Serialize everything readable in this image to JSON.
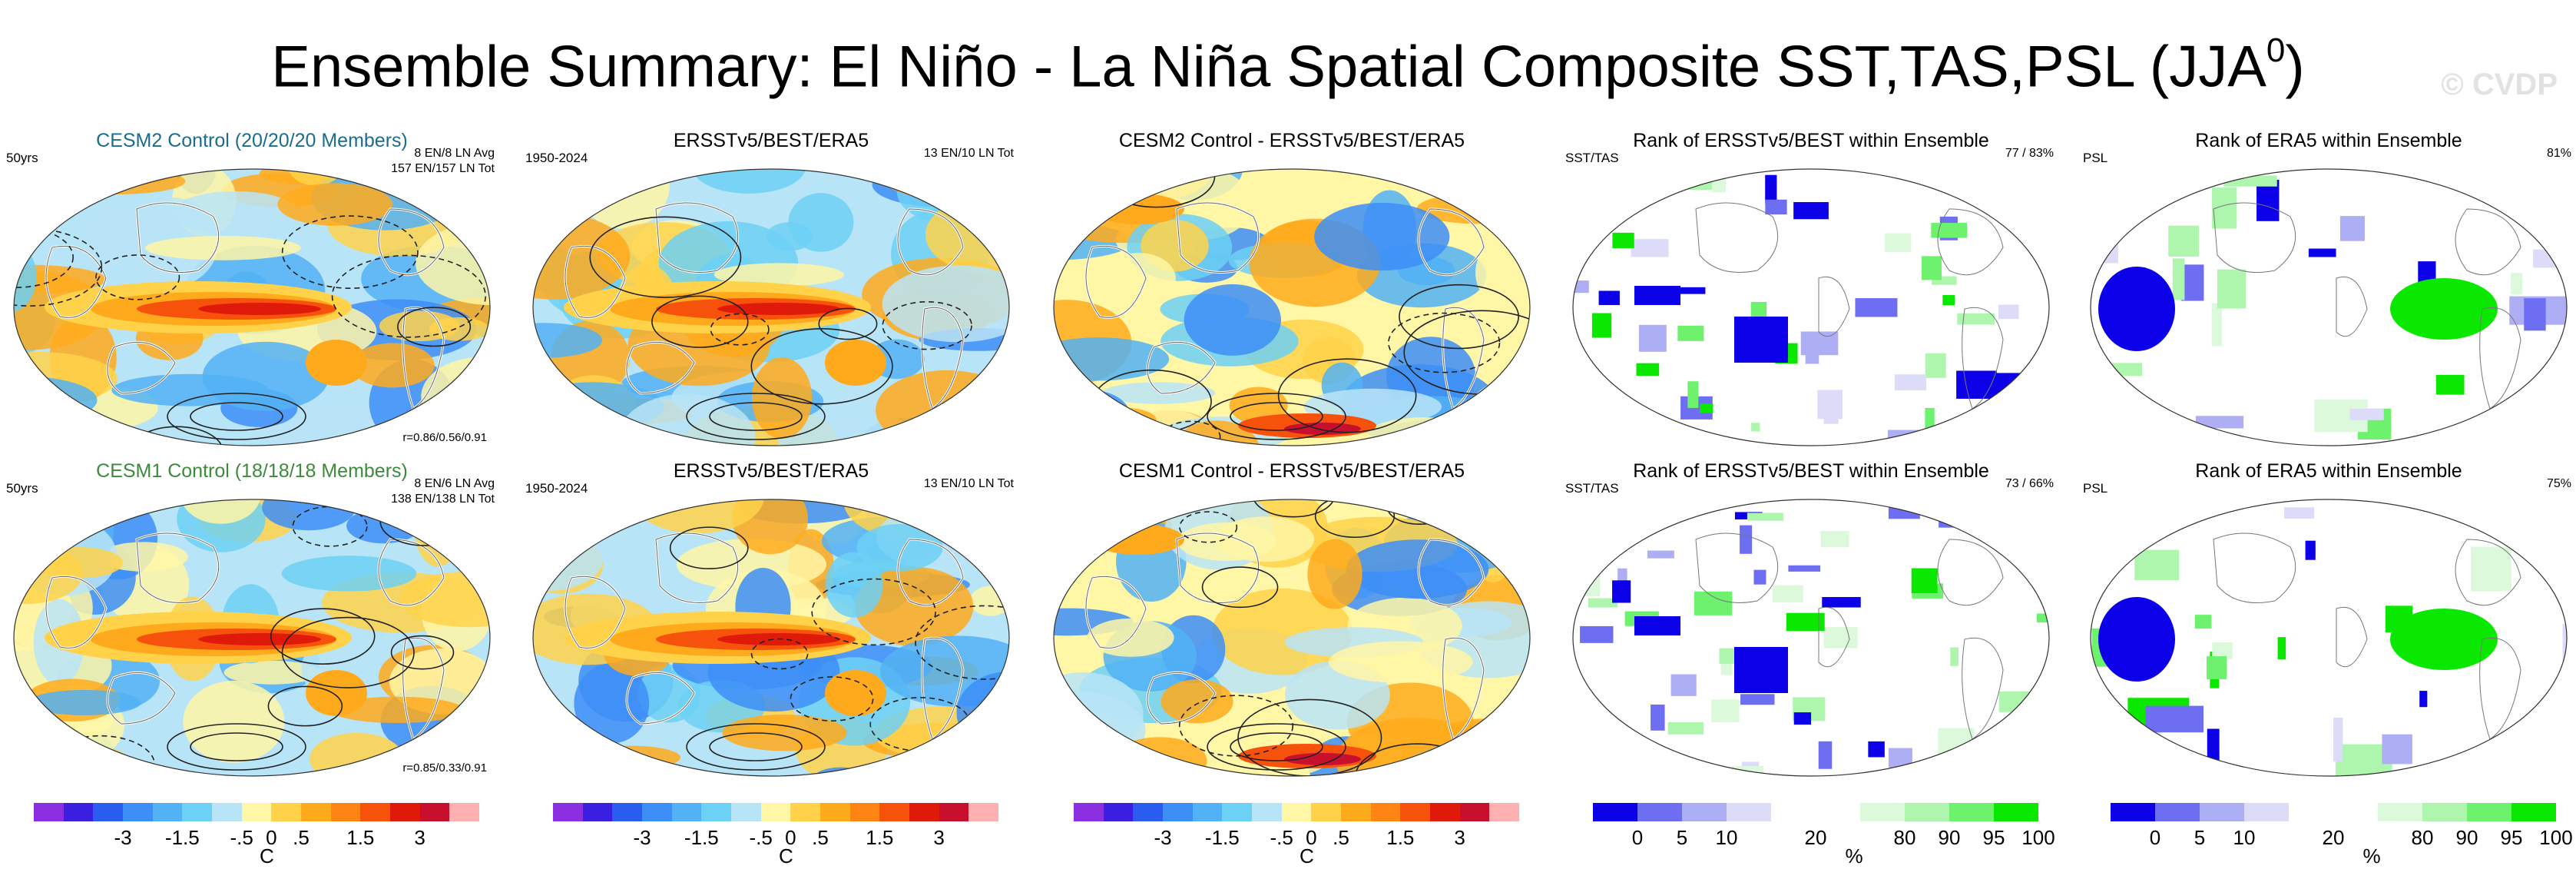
{
  "title": {
    "main": "Ensemble Summary: El Niño - La Niña Spatial Composite SST,TAS,PSL (JJA",
    "sup": "0",
    "close": ")"
  },
  "watermark": "© CVDP",
  "panels": [
    {
      "id": "r1c1",
      "title": "CESM2 Control (20/20/20 Members)",
      "title_color": "teal",
      "left_label": "50yrs",
      "right_lines": [
        "8 EN/8 LN Avg",
        "157 EN/157 LN Tot"
      ],
      "corr": "r=0.86/0.56/0.91",
      "map": "anomaly",
      "variant": 1
    },
    {
      "id": "r1c2",
      "title": "ERSSTv5/BEST/ERA5",
      "left_label": "1950-2024",
      "right_lines": [
        "13 EN/10 LN Tot"
      ],
      "map": "anomaly",
      "variant": 2
    },
    {
      "id": "r1c3",
      "title": "CESM2 Control - ERSSTv5/BEST/ERA5",
      "map": "difference",
      "variant": 3
    },
    {
      "id": "r1c4",
      "title": "Rank of ERSSTv5/BEST within Ensemble",
      "left_label": "SST/TAS",
      "right_lines": [
        "77 /  83%"
      ],
      "map": "rank_sst",
      "variant": 4
    },
    {
      "id": "r1c5",
      "title": "Rank of ERA5 within Ensemble",
      "left_label": "PSL",
      "right_lines": [
        "81%"
      ],
      "map": "rank_psl",
      "variant": 5
    },
    {
      "id": "r2c1",
      "title": "CESM1 Control (18/18/18 Members)",
      "title_color": "green",
      "left_label": "50yrs",
      "right_lines": [
        "8 EN/6 LN Avg",
        "138 EN/138 LN Tot"
      ],
      "corr": "r=0.85/0.33/0.91",
      "map": "anomaly",
      "variant": 6
    },
    {
      "id": "r2c2",
      "title": "ERSSTv5/BEST/ERA5",
      "left_label": "1950-2024",
      "right_lines": [
        "13 EN/10 LN Tot"
      ],
      "map": "anomaly",
      "variant": 7
    },
    {
      "id": "r2c3",
      "title": "CESM1 Control - ERSSTv5/BEST/ERA5",
      "map": "difference",
      "variant": 8
    },
    {
      "id": "r2c4",
      "title": "Rank of ERSSTv5/BEST within Ensemble",
      "left_label": "SST/TAS",
      "right_lines": [
        "73 /  66%"
      ],
      "map": "rank_sst",
      "variant": 9
    },
    {
      "id": "r2c5",
      "title": "Rank of ERA5 within Ensemble",
      "left_label": "PSL",
      "right_lines": [
        "75%"
      ],
      "map": "rank_psl",
      "variant": 10
    }
  ],
  "chart_data": [
    {
      "type": "heatmap",
      "name": "temperature anomaly colorbar",
      "unit": "C",
      "tick_labels": [
        "-3",
        "-1.5",
        "-.5",
        "0",
        ".5",
        "1.5",
        "3"
      ],
      "tick_positions_box_index": [
        3,
        5,
        7,
        8,
        9,
        11,
        13
      ],
      "colors": [
        "#8c2fe0",
        "#3a1fe0",
        "#2a5cf0",
        "#3d8ef7",
        "#52b2f5",
        "#6dd0f5",
        "#b8e4f7",
        "#fff6a6",
        "#ffd24a",
        "#ffaa1c",
        "#ff8412",
        "#f7520c",
        "#e01a0a",
        "#c8102e",
        "#ffb0b0"
      ]
    },
    {
      "type": "heatmap",
      "name": "rank colorbar",
      "unit": "%",
      "tick_labels": [
        "0",
        "5",
        "10",
        "20",
        "80",
        "90",
        "95",
        "100"
      ],
      "tick_positions_box_index": [
        1,
        2,
        3,
        5,
        7,
        8,
        9,
        10
      ],
      "colors": [
        "#0b00e8",
        "#6e6ef2",
        "#aeaef5",
        "#dcdcf9",
        "#ffffff",
        "#ffffff",
        "#dcf9dc",
        "#aef5ae",
        "#6ef26e",
        "#0be800"
      ]
    }
  ]
}
